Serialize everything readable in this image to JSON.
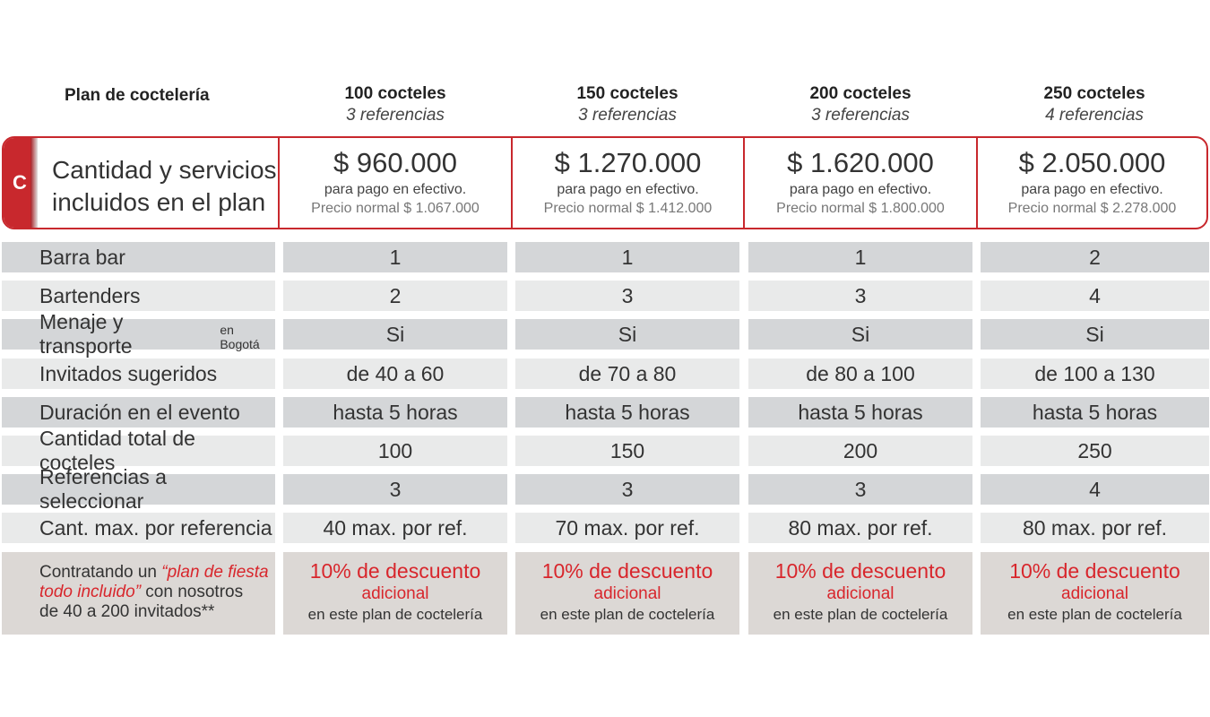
{
  "header": {
    "plan_title": "Plan de coctelería",
    "columns": [
      {
        "title": "100 cocteles",
        "subtitle": "3 referencias"
      },
      {
        "title": "150 cocteles",
        "subtitle": "3 referencias"
      },
      {
        "title": "200 cocteles",
        "subtitle": "3 referencias"
      },
      {
        "title": "250 cocteles",
        "subtitle": "4 referencias"
      }
    ]
  },
  "price_band": {
    "tab_letter": "C",
    "label_line1": "Cantidad y servicios",
    "label_line2": "incluidos en el plan",
    "prices": [
      {
        "amount": "$ 960.000",
        "cash_note": "para pago en efectivo.",
        "normal": "Precio normal $ 1.067.000"
      },
      {
        "amount": "$ 1.270.000",
        "cash_note": "para pago en efectivo.",
        "normal": "Precio normal $ 1.412.000"
      },
      {
        "amount": "$ 1.620.000",
        "cash_note": "para pago en efectivo.",
        "normal": "Precio normal $ 1.800.000"
      },
      {
        "amount": "$ 2.050.000",
        "cash_note": "para pago en efectivo.",
        "normal": "Precio normal $ 2.278.000"
      }
    ]
  },
  "rows": [
    {
      "label": "Barra bar",
      "values": [
        "1",
        "1",
        "1",
        "2"
      ]
    },
    {
      "label": "Bartenders",
      "values": [
        "2",
        "3",
        "3",
        "4"
      ]
    },
    {
      "label": "Menaje y transporte",
      "label_small": "en Bogotá",
      "values": [
        "Si",
        "Si",
        "Si",
        "Si"
      ]
    },
    {
      "label": "Invitados sugeridos",
      "values": [
        "de 40 a 60",
        "de 70 a 80",
        "de 80 a 100",
        "de 100 a 130"
      ]
    },
    {
      "label": "Duración en el evento",
      "values": [
        "hasta 5 horas",
        "hasta 5 horas",
        "hasta 5 horas",
        "hasta 5 horas"
      ]
    },
    {
      "label": "Cantidad total de cocteles",
      "values": [
        "100",
        "150",
        "200",
        "250"
      ]
    },
    {
      "label": "Referencias a seleccionar",
      "values": [
        "3",
        "3",
        "3",
        "4"
      ]
    },
    {
      "label": "Cant. max. por referencia",
      "values": [
        "40 max. por ref.",
        "70 max. por ref.",
        "80 max. por ref.",
        "80 max. por ref."
      ]
    }
  ],
  "promo": {
    "label_prefix": "Contratando un ",
    "label_highlight_1": "“plan de fiesta",
    "label_highlight_2": "todo incluido”",
    "label_mid": " con nosotros",
    "label_end": "de 40 a 200 invitados**",
    "discount_line1": "10% de descuento",
    "discount_line2": "adicional",
    "discount_line3": "en este plan de coctelería"
  },
  "colors": {
    "accent_red": "#c8282d",
    "row_dark": "#d4d6d8",
    "row_light": "#e9eaea",
    "promo_bg": "#dcd8d5"
  }
}
